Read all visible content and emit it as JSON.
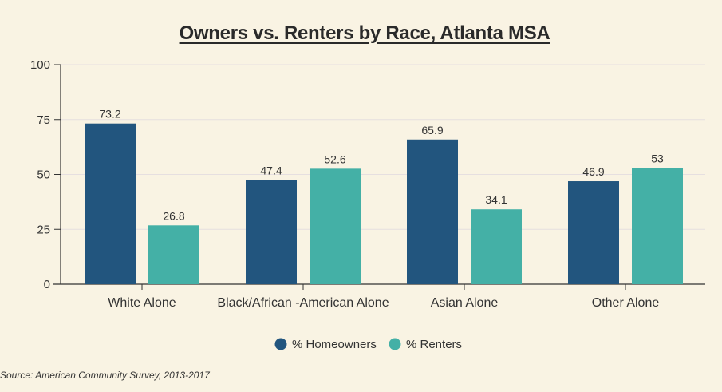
{
  "chart_data": {
    "type": "bar",
    "title": "Owners vs. Renters by Race, Atlanta MSA",
    "categories": [
      "White Alone",
      "Black/African -American Alone",
      "Asian Alone",
      "Other Alone"
    ],
    "series": [
      {
        "name": "% Homeowners",
        "color": "#22557e",
        "values": [
          73.2,
          47.4,
          65.9,
          46.9
        ],
        "labels": [
          "73.2",
          "47.4",
          "65.9",
          "46.9"
        ]
      },
      {
        "name": "% Renters",
        "color": "#44b0a6",
        "values": [
          26.8,
          52.6,
          34.1,
          53
        ],
        "labels": [
          "26.8",
          "52.6",
          "34.1",
          "53"
        ]
      }
    ],
    "ylim": [
      0,
      100
    ],
    "yticks": [
      0,
      25,
      50,
      75,
      100
    ],
    "grid": true,
    "legend": "bottom-center"
  },
  "source": "Source: American Community Survey, 2013-2017"
}
